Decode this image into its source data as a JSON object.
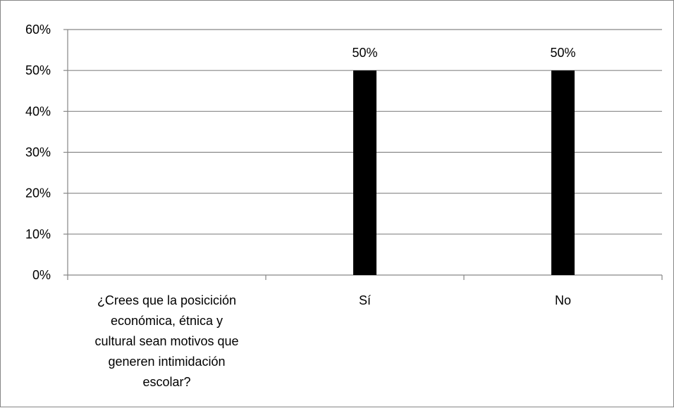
{
  "chart_data": {
    "type": "bar",
    "categories": [
      "¿Crees que la posicición económica, étnica y cultural sean motivos que generen intimidación escolar?",
      "Sí",
      "No"
    ],
    "category_label_lines": [
      [
        "¿Crees que la posicición",
        "económica, étnica y",
        "cultural sean motivos que",
        "generen intimidación",
        "escolar?"
      ],
      [
        "Sí"
      ],
      [
        "No"
      ]
    ],
    "values": [
      null,
      50,
      50
    ],
    "data_labels": [
      "",
      "50%",
      "50%"
    ],
    "ylim": [
      0,
      60
    ],
    "y_ticks": [
      "0%",
      "10%",
      "20%",
      "30%",
      "40%",
      "50%",
      "60%"
    ],
    "y_tick_values": [
      0,
      10,
      20,
      30,
      40,
      50,
      60
    ],
    "grid": true,
    "legend": "none",
    "title": "",
    "xlabel": "",
    "ylabel": "",
    "colors": {
      "bar": "#000000",
      "grid": "#868686",
      "axis": "#868686",
      "border": "#868686"
    }
  }
}
